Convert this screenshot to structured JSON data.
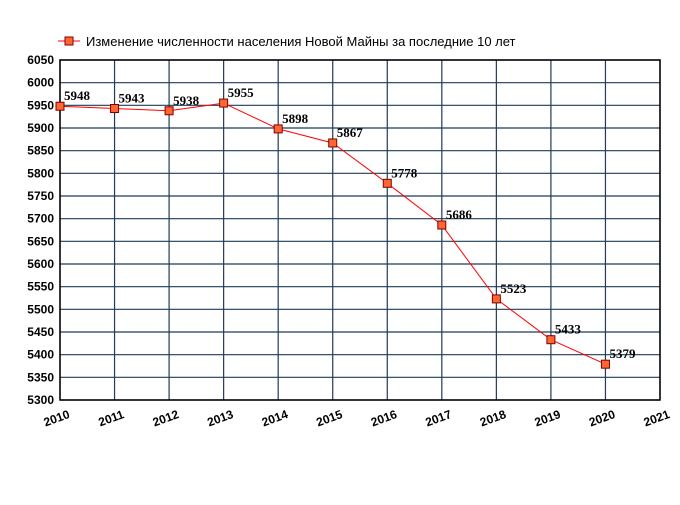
{
  "chart_data": {
    "type": "line",
    "title": "",
    "xlabel": "",
    "ylabel": "",
    "x": [
      2010,
      2011,
      2012,
      2013,
      2014,
      2015,
      2016,
      2017,
      2018,
      2019,
      2020
    ],
    "x_ticks": [
      "2010",
      "2011",
      "2012",
      "2013",
      "2014",
      "2015",
      "2016",
      "2017",
      "2018",
      "2019",
      "2020",
      "2021"
    ],
    "xlim": [
      2010,
      2021
    ],
    "ylim": [
      5300,
      6050
    ],
    "y_ticks": [
      5300,
      5350,
      5400,
      5450,
      5500,
      5550,
      5600,
      5650,
      5700,
      5750,
      5800,
      5850,
      5900,
      5950,
      6000,
      6050
    ],
    "grid": true,
    "legend_position": "top",
    "series": [
      {
        "name": "Изменение численности населения Новой Майны за последние 10 лет",
        "values": [
          5948,
          5943,
          5938,
          5955,
          5898,
          5867,
          5778,
          5686,
          5523,
          5433,
          5379
        ],
        "labels": [
          "5948",
          "5943",
          "5938",
          "5955",
          "5898",
          "5867",
          "5778",
          "5686",
          "5523",
          "5433",
          "5379"
        ],
        "line_color": "#ff0000",
        "marker_fill": "#ff6633",
        "marker_stroke": "#800000"
      }
    ]
  },
  "colors": {
    "grid": "#1f3c5a",
    "plot_border": "#000000",
    "background": "#ffffff"
  }
}
